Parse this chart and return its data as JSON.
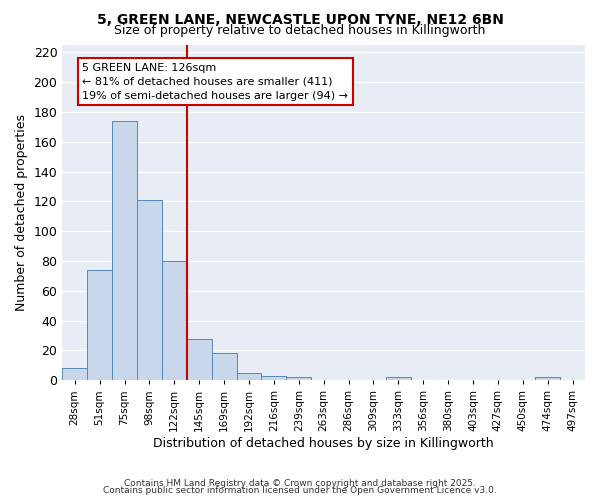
{
  "title1": "5, GREEN LANE, NEWCASTLE UPON TYNE, NE12 6BN",
  "title2": "Size of property relative to detached houses in Killingworth",
  "xlabel": "Distribution of detached houses by size in Killingworth",
  "ylabel": "Number of detached properties",
  "categories": [
    "28sqm",
    "51sqm",
    "75sqm",
    "98sqm",
    "122sqm",
    "145sqm",
    "169sqm",
    "192sqm",
    "216sqm",
    "239sqm",
    "263sqm",
    "286sqm",
    "309sqm",
    "333sqm",
    "356sqm",
    "380sqm",
    "403sqm",
    "427sqm",
    "450sqm",
    "474sqm",
    "497sqm"
  ],
  "values": [
    8,
    74,
    174,
    121,
    80,
    28,
    18,
    5,
    3,
    2,
    0,
    0,
    0,
    2,
    0,
    0,
    0,
    0,
    0,
    2,
    0
  ],
  "bar_color": "#c8d8ea",
  "bar_edge_color": "#5588bb",
  "plot_bg_color": "#e8ecf4",
  "fig_bg_color": "#ffffff",
  "grid_color": "#ffffff",
  "red_line_x": 4.5,
  "annotation_text_line1": "5 GREEN LANE: 126sqm",
  "annotation_text_line2": "← 81% of detached houses are smaller (411)",
  "annotation_text_line3": "19% of semi-detached houses are larger (94) →",
  "annotation_box_facecolor": "#ffffff",
  "annotation_box_edgecolor": "#cc0000",
  "red_line_color": "#cc0000",
  "ylim": [
    0,
    225
  ],
  "yticks": [
    0,
    20,
    40,
    60,
    80,
    100,
    120,
    140,
    160,
    180,
    200,
    220
  ],
  "footnote1": "Contains HM Land Registry data © Crown copyright and database right 2025.",
  "footnote2": "Contains public sector information licensed under the Open Government Licence v3.0."
}
